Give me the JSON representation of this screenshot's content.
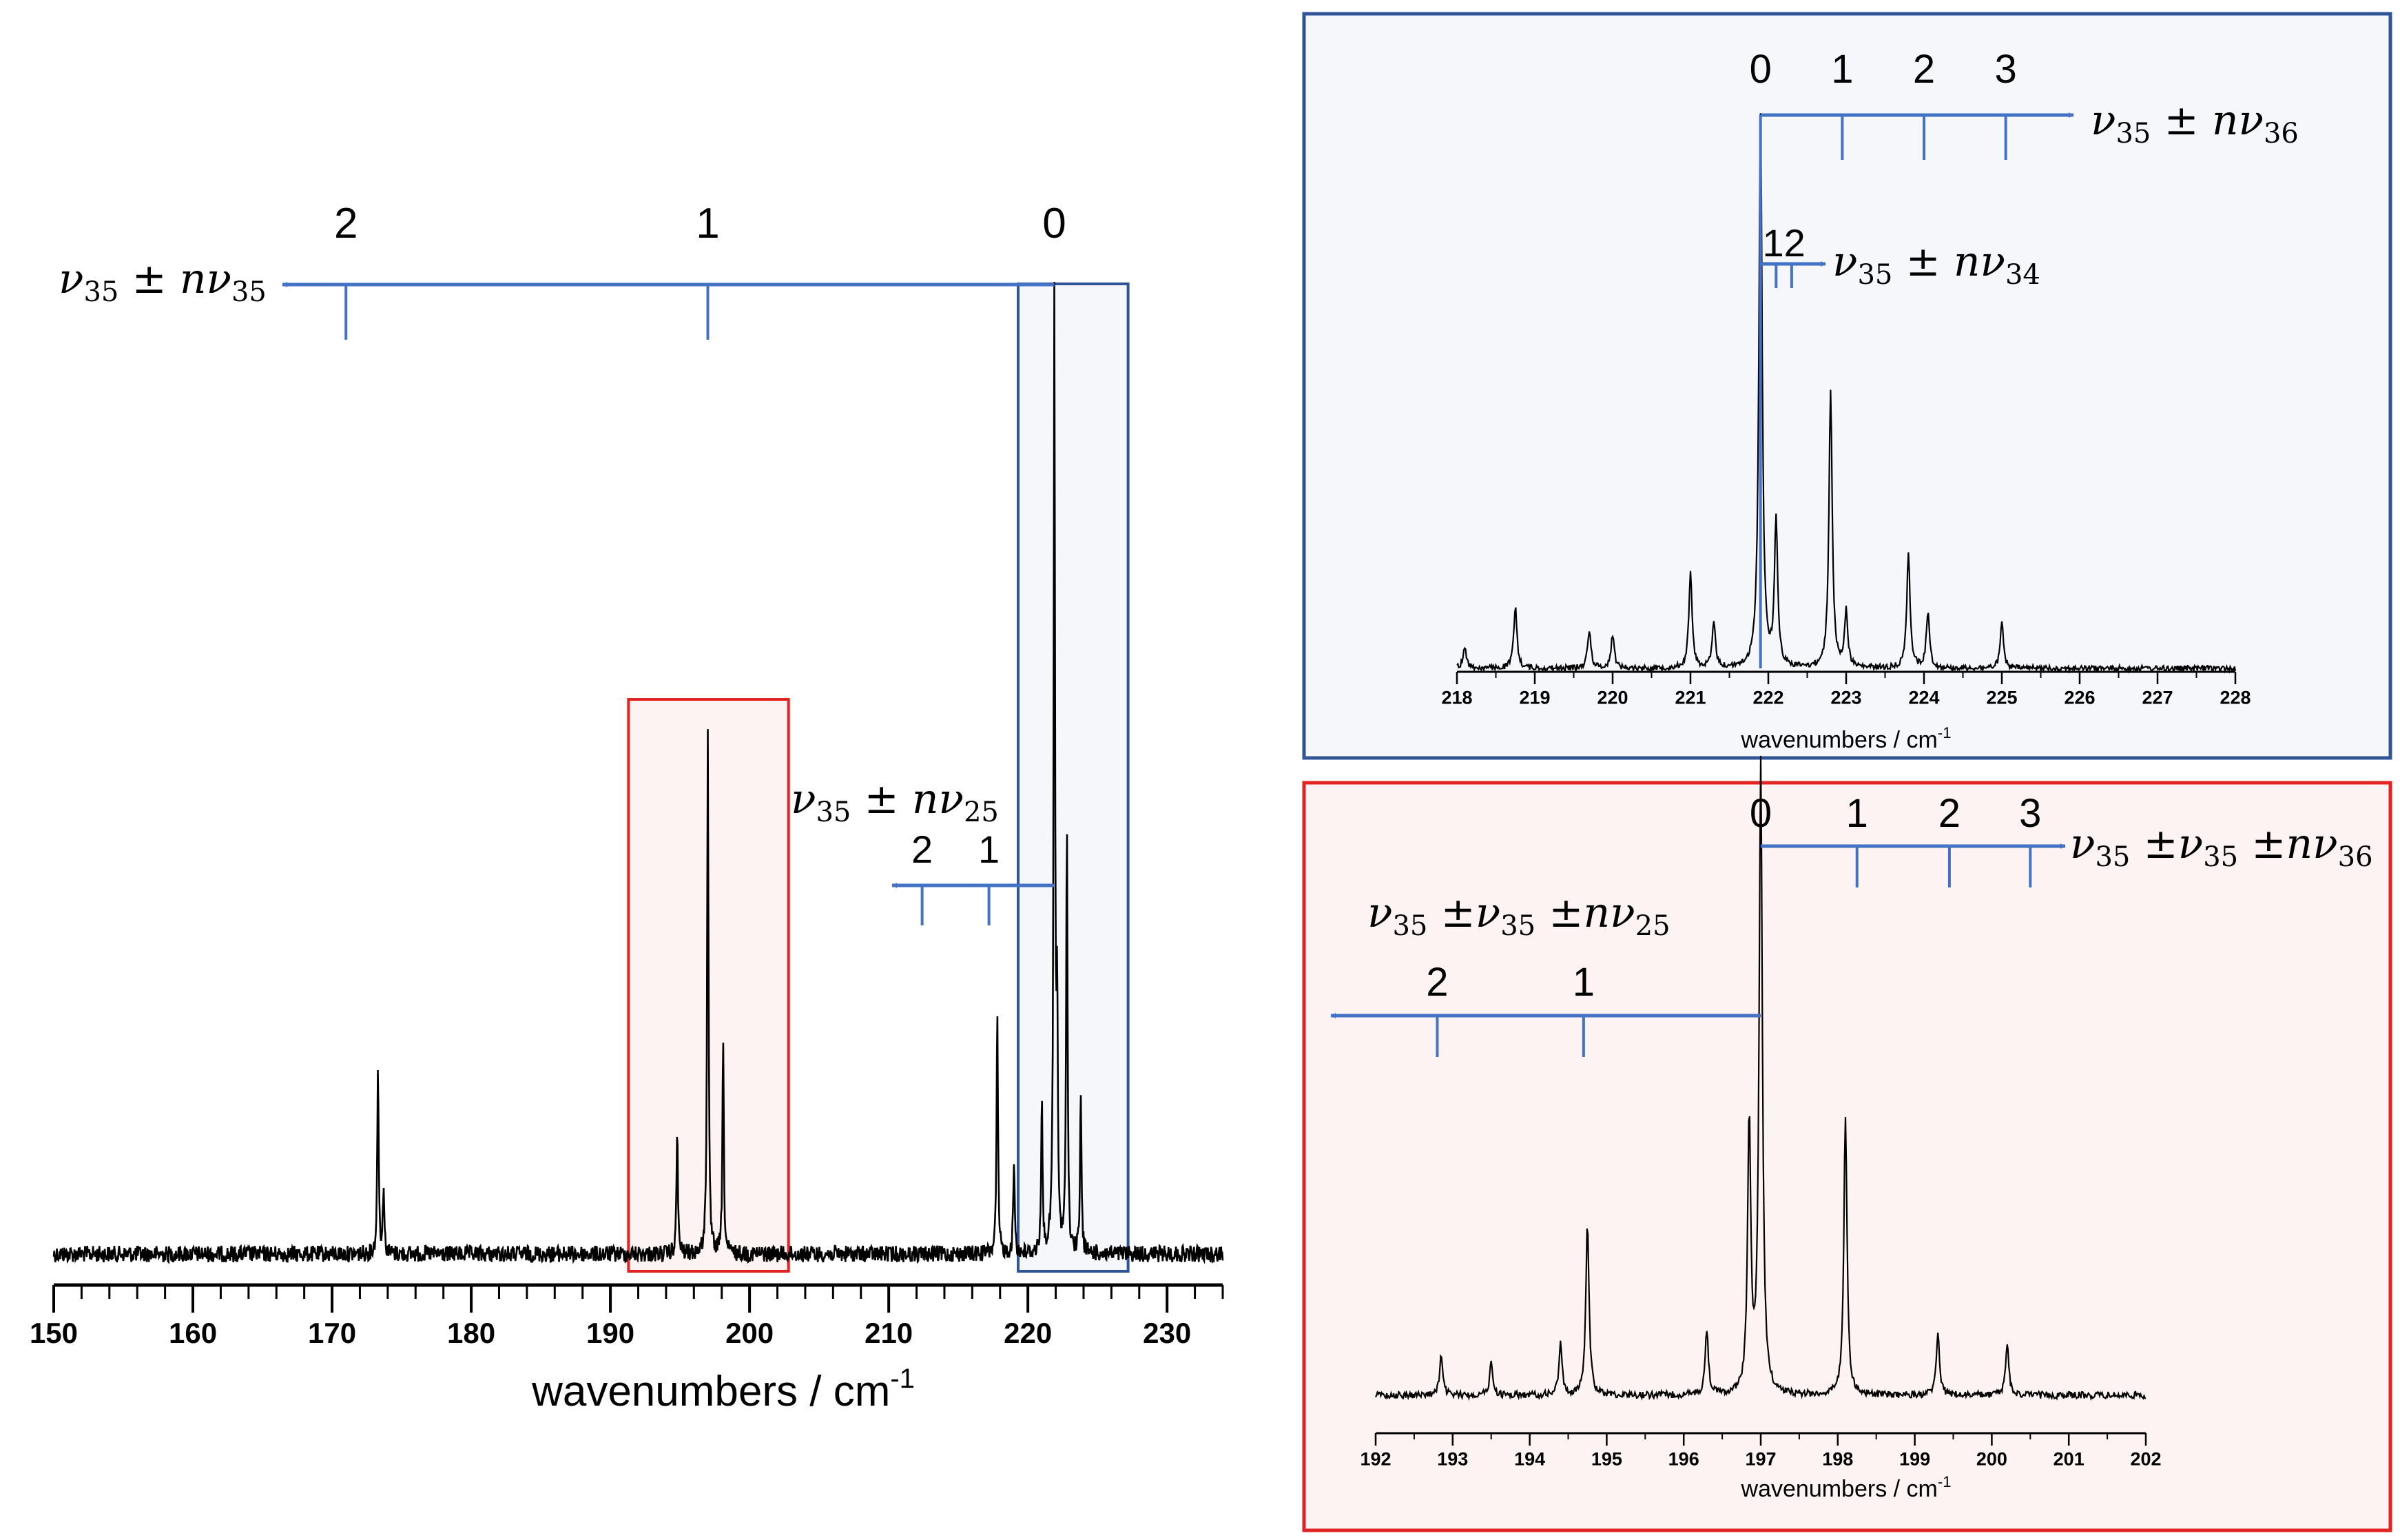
{
  "colors": {
    "progression": "#4472C4",
    "blue_box": "#2F5597",
    "blue_fill": "#F5F7FB",
    "red_box": "#E32222",
    "red_fill": "#FDF3F3",
    "trace": "#000000"
  },
  "chart_data": [
    {
      "type": "line",
      "xlabel": "wavenumbers / cm",
      "xlabel_superscript": "-1",
      "xlim": [
        150,
        234
      ],
      "x_ticks": [
        "150",
        "160",
        "170",
        "180",
        "190",
        "200",
        "210",
        "220",
        "230"
      ],
      "grid": false,
      "peaks": [
        {
          "x": 173.3,
          "y": 0.2
        },
        {
          "x": 173.7,
          "y": 0.07
        },
        {
          "x": 194.8,
          "y": 0.13
        },
        {
          "x": 197.0,
          "y": 0.55
        },
        {
          "x": 198.1,
          "y": 0.22
        },
        {
          "x": 217.8,
          "y": 0.25
        },
        {
          "x": 219.0,
          "y": 0.1
        },
        {
          "x": 221.0,
          "y": 0.16
        },
        {
          "x": 221.9,
          "y": 1.0
        },
        {
          "x": 222.1,
          "y": 0.23
        },
        {
          "x": 222.8,
          "y": 0.45
        },
        {
          "x": 223.8,
          "y": 0.17
        }
      ],
      "highlight_boxes": [
        {
          "xmin": 191.3,
          "xmax": 202.8,
          "color": "red"
        },
        {
          "xmin": 219.3,
          "xmax": 227.2,
          "color": "blue"
        }
      ],
      "annotations": {
        "prog_35": {
          "label": "ν35 ±nν35",
          "origin": 221.9,
          "numbers": [
            "2",
            "1",
            "0"
          ],
          "positions": [
            171.0,
            197.0,
            221.9
          ]
        },
        "prog_25": {
          "label": "ν35 ±nν25",
          "origin": 221.9,
          "numbers": [
            "2",
            "1"
          ],
          "positions": [
            212.4,
            217.2
          ]
        }
      }
    },
    {
      "type": "line",
      "xlabel": "wavenumbers / cm",
      "xlabel_superscript": "-1",
      "xlim": [
        218,
        228
      ],
      "x_ticks": [
        "218",
        "219",
        "220",
        "221",
        "222",
        "223",
        "224",
        "225",
        "226",
        "227",
        "228"
      ],
      "grid": false,
      "peaks": [
        {
          "x": 218.1,
          "y": 0.04
        },
        {
          "x": 218.75,
          "y": 0.11
        },
        {
          "x": 219.7,
          "y": 0.07
        },
        {
          "x": 220.0,
          "y": 0.06
        },
        {
          "x": 221.0,
          "y": 0.17
        },
        {
          "x": 221.3,
          "y": 0.08
        },
        {
          "x": 221.9,
          "y": 1.0
        },
        {
          "x": 222.1,
          "y": 0.26
        },
        {
          "x": 222.8,
          "y": 0.5
        },
        {
          "x": 223.0,
          "y": 0.1
        },
        {
          "x": 223.8,
          "y": 0.21
        },
        {
          "x": 224.05,
          "y": 0.1
        },
        {
          "x": 225.0,
          "y": 0.08
        }
      ],
      "annotations": {
        "prog_36": {
          "label": "ν35 ±nν36",
          "numbers": [
            "0",
            "1",
            "2",
            "3"
          ],
          "positions": [
            221.9,
            222.95,
            224.0,
            225.05
          ]
        },
        "prog_34": {
          "label": "ν35 ±nν34",
          "numbers": [
            "1",
            "2"
          ],
          "positions": [
            222.1,
            222.3
          ]
        }
      }
    },
    {
      "type": "line",
      "xlabel": "wavenumbers / cm",
      "xlabel_superscript": "-1",
      "xlim": [
        192,
        202
      ],
      "x_ticks": [
        "192",
        "193",
        "194",
        "195",
        "196",
        "197",
        "198",
        "199",
        "200",
        "201",
        "202"
      ],
      "grid": false,
      "peaks": [
        {
          "x": 192.85,
          "y": 0.06
        },
        {
          "x": 193.5,
          "y": 0.05
        },
        {
          "x": 194.4,
          "y": 0.08
        },
        {
          "x": 194.75,
          "y": 0.27
        },
        {
          "x": 196.3,
          "y": 0.1
        },
        {
          "x": 196.85,
          "y": 0.43
        },
        {
          "x": 197.0,
          "y": 1.0
        },
        {
          "x": 198.1,
          "y": 0.44
        },
        {
          "x": 199.3,
          "y": 0.1
        },
        {
          "x": 200.2,
          "y": 0.08
        }
      ],
      "annotations": {
        "prog_36": {
          "label": "ν35 ±ν35 ±nν36",
          "numbers": [
            "0",
            "1",
            "2",
            "3"
          ],
          "positions": [
            197.0,
            198.25,
            199.45,
            200.5
          ]
        },
        "prog_25": {
          "label": "ν35 ±ν35 ±nν25",
          "numbers": [
            "2",
            "1"
          ],
          "positions": [
            192.8,
            194.7
          ]
        }
      }
    }
  ]
}
